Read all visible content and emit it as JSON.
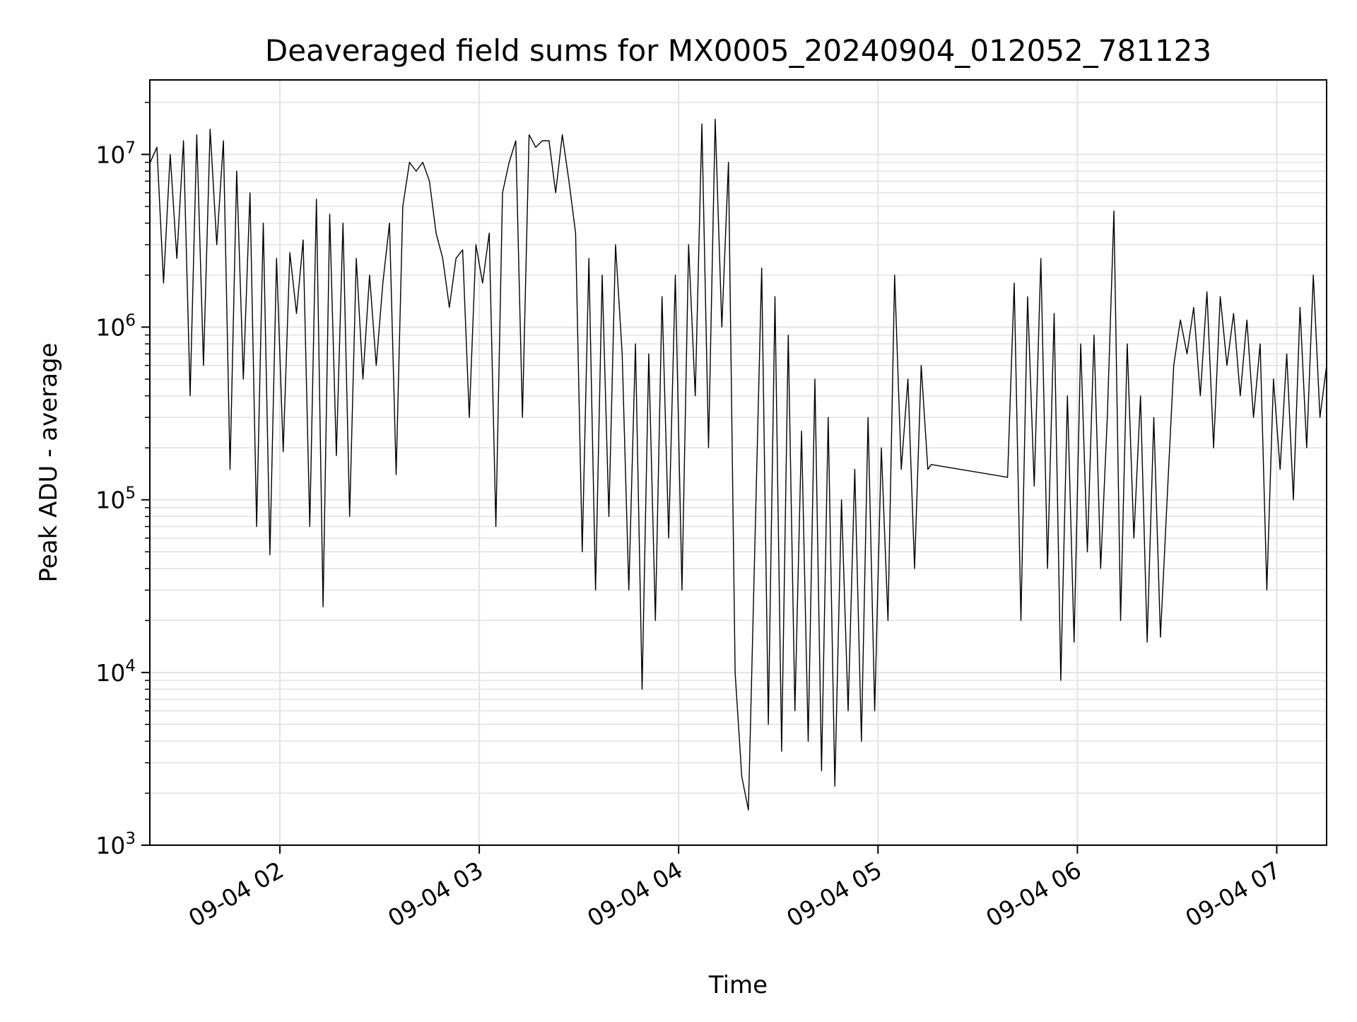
{
  "chart_data": {
    "type": "line",
    "title": "Deaveraged field sums for MX0005_20240904_012052_781123",
    "xlabel": "Time",
    "ylabel": "Peak ADU - average",
    "y_scale": "log",
    "ylim": [
      1000,
      27000000
    ],
    "xlim": [
      "2024-09-04 01:20:52",
      "2024-09-04 07:15:00"
    ],
    "grid": true,
    "line_color": "#000000",
    "grid_color": "#e3e3e3",
    "x_ticks": [
      {
        "value": "2024-09-04 02:00",
        "label": "09-04 02"
      },
      {
        "value": "2024-09-04 03:00",
        "label": "09-04 03"
      },
      {
        "value": "2024-09-04 04:00",
        "label": "09-04 04"
      },
      {
        "value": "2024-09-04 05:00",
        "label": "09-04 05"
      },
      {
        "value": "2024-09-04 06:00",
        "label": "09-04 06"
      },
      {
        "value": "2024-09-04 07:00",
        "label": "09-04 07"
      }
    ],
    "y_ticks": [
      {
        "value": 1000,
        "base": "10",
        "exp": "3"
      },
      {
        "value": 10000,
        "base": "10",
        "exp": "4"
      },
      {
        "value": 100000,
        "base": "10",
        "exp": "5"
      },
      {
        "value": 1000000,
        "base": "10",
        "exp": "6"
      },
      {
        "value": 10000000,
        "base": "10",
        "exp": "7"
      }
    ],
    "series": [
      {
        "points": [
          [
            "2024-09-04 01:21",
            9000000
          ],
          [
            "2024-09-04 01:23",
            11000000
          ],
          [
            "2024-09-04 01:25",
            1800000
          ],
          [
            "2024-09-04 01:27",
            10000000
          ],
          [
            "2024-09-04 01:29",
            2500000
          ],
          [
            "2024-09-04 01:31",
            12000000
          ],
          [
            "2024-09-04 01:33",
            400000
          ],
          [
            "2024-09-04 01:35",
            13000000
          ],
          [
            "2024-09-04 01:37",
            600000
          ],
          [
            "2024-09-04 01:39",
            14000000
          ],
          [
            "2024-09-04 01:41",
            3000000
          ],
          [
            "2024-09-04 01:43",
            12000000
          ],
          [
            "2024-09-04 01:45",
            150000
          ],
          [
            "2024-09-04 01:47",
            8000000
          ],
          [
            "2024-09-04 01:49",
            500000
          ],
          [
            "2024-09-04 01:51",
            6000000
          ],
          [
            "2024-09-04 01:53",
            70000
          ],
          [
            "2024-09-04 01:55",
            4000000
          ],
          [
            "2024-09-04 01:57",
            48000
          ],
          [
            "2024-09-04 01:59",
            2500000
          ],
          [
            "2024-09-04 02:01",
            190000
          ],
          [
            "2024-09-04 02:03",
            2700000
          ],
          [
            "2024-09-04 02:05",
            1200000
          ],
          [
            "2024-09-04 02:07",
            3200000
          ],
          [
            "2024-09-04 02:09",
            70000
          ],
          [
            "2024-09-04 02:11",
            5500000
          ],
          [
            "2024-09-04 02:13",
            24000
          ],
          [
            "2024-09-04 02:15",
            4500000
          ],
          [
            "2024-09-04 02:17",
            180000
          ],
          [
            "2024-09-04 02:19",
            4000000
          ],
          [
            "2024-09-04 02:21",
            80000
          ],
          [
            "2024-09-04 02:23",
            2500000
          ],
          [
            "2024-09-04 02:25",
            500000
          ],
          [
            "2024-09-04 02:27",
            2000000
          ],
          [
            "2024-09-04 02:29",
            600000
          ],
          [
            "2024-09-04 02:31",
            1800000
          ],
          [
            "2024-09-04 02:33",
            4000000
          ],
          [
            "2024-09-04 02:35",
            140000
          ],
          [
            "2024-09-04 02:37",
            5000000
          ],
          [
            "2024-09-04 02:39",
            9000000
          ],
          [
            "2024-09-04 02:41",
            8000000
          ],
          [
            "2024-09-04 02:43",
            9000000
          ],
          [
            "2024-09-04 02:45",
            7000000
          ],
          [
            "2024-09-04 02:47",
            3500000
          ],
          [
            "2024-09-04 02:49",
            2500000
          ],
          [
            "2024-09-04 02:51",
            1300000
          ],
          [
            "2024-09-04 02:53",
            2500000
          ],
          [
            "2024-09-04 02:55",
            2800000
          ],
          [
            "2024-09-04 02:57",
            300000
          ],
          [
            "2024-09-04 02:59",
            3000000
          ],
          [
            "2024-09-04 03:01",
            1800000
          ],
          [
            "2024-09-04 03:03",
            3500000
          ],
          [
            "2024-09-04 03:05",
            70000
          ],
          [
            "2024-09-04 03:07",
            6000000
          ],
          [
            "2024-09-04 03:09",
            9000000
          ],
          [
            "2024-09-04 03:11",
            12000000
          ],
          [
            "2024-09-04 03:13",
            300000
          ],
          [
            "2024-09-04 03:15",
            13000000
          ],
          [
            "2024-09-04 03:17",
            11000000
          ],
          [
            "2024-09-04 03:19",
            12000000
          ],
          [
            "2024-09-04 03:21",
            12000000
          ],
          [
            "2024-09-04 03:23",
            6000000
          ],
          [
            "2024-09-04 03:25",
            13000000
          ],
          [
            "2024-09-04 03:27",
            7000000
          ],
          [
            "2024-09-04 03:29",
            3500000
          ],
          [
            "2024-09-04 03:31",
            50000
          ],
          [
            "2024-09-04 03:33",
            2500000
          ],
          [
            "2024-09-04 03:35",
            30000
          ],
          [
            "2024-09-04 03:37",
            2000000
          ],
          [
            "2024-09-04 03:39",
            80000
          ],
          [
            "2024-09-04 03:41",
            3000000
          ],
          [
            "2024-09-04 03:43",
            700000
          ],
          [
            "2024-09-04 03:45",
            30000
          ],
          [
            "2024-09-04 03:47",
            800000
          ],
          [
            "2024-09-04 03:49",
            8000
          ],
          [
            "2024-09-04 03:51",
            700000
          ],
          [
            "2024-09-04 03:53",
            20000
          ],
          [
            "2024-09-04 03:55",
            1500000
          ],
          [
            "2024-09-04 03:57",
            60000
          ],
          [
            "2024-09-04 03:59",
            2000000
          ],
          [
            "2024-09-04 04:01",
            30000
          ],
          [
            "2024-09-04 04:03",
            3000000
          ],
          [
            "2024-09-04 04:05",
            400000
          ],
          [
            "2024-09-04 04:07",
            15000000
          ],
          [
            "2024-09-04 04:09",
            200000
          ],
          [
            "2024-09-04 04:11",
            16000000
          ],
          [
            "2024-09-04 04:13",
            1000000
          ],
          [
            "2024-09-04 04:15",
            9000000
          ],
          [
            "2024-09-04 04:17",
            10000
          ],
          [
            "2024-09-04 04:19",
            2500
          ],
          [
            "2024-09-04 04:21",
            1600
          ],
          [
            "2024-09-04 04:23",
            60000
          ],
          [
            "2024-09-04 04:25",
            2200000
          ],
          [
            "2024-09-04 04:27",
            5000
          ],
          [
            "2024-09-04 04:29",
            1500000
          ],
          [
            "2024-09-04 04:31",
            3500
          ],
          [
            "2024-09-04 04:33",
            900000
          ],
          [
            "2024-09-04 04:35",
            6000
          ],
          [
            "2024-09-04 04:37",
            250000
          ],
          [
            "2024-09-04 04:39",
            4000
          ],
          [
            "2024-09-04 04:41",
            500000
          ],
          [
            "2024-09-04 04:43",
            2700
          ],
          [
            "2024-09-04 04:45",
            300000
          ],
          [
            "2024-09-04 04:47",
            2200
          ],
          [
            "2024-09-04 04:49",
            100000
          ],
          [
            "2024-09-04 04:51",
            6000
          ],
          [
            "2024-09-04 04:53",
            150000
          ],
          [
            "2024-09-04 04:55",
            4000
          ],
          [
            "2024-09-04 04:57",
            300000
          ],
          [
            "2024-09-04 04:59",
            6000
          ],
          [
            "2024-09-04 05:01",
            200000
          ],
          [
            "2024-09-04 05:03",
            20000
          ],
          [
            "2024-09-04 05:05",
            2000000
          ],
          [
            "2024-09-04 05:07",
            150000
          ],
          [
            "2024-09-04 05:09",
            500000
          ],
          [
            "2024-09-04 05:11",
            40000
          ],
          [
            "2024-09-04 05:13",
            600000
          ],
          [
            "2024-09-04 05:15",
            150000
          ],
          [
            "2024-09-04 05:16",
            160000
          ],
          [
            "2024-09-04 05:39",
            135000
          ],
          [
            "2024-09-04 05:41",
            1800000
          ],
          [
            "2024-09-04 05:43",
            20000
          ],
          [
            "2024-09-04 05:45",
            1500000
          ],
          [
            "2024-09-04 05:47",
            120000
          ],
          [
            "2024-09-04 05:49",
            2500000
          ],
          [
            "2024-09-04 05:51",
            40000
          ],
          [
            "2024-09-04 05:53",
            1200000
          ],
          [
            "2024-09-04 05:55",
            9000
          ],
          [
            "2024-09-04 05:57",
            400000
          ],
          [
            "2024-09-04 05:59",
            15000
          ],
          [
            "2024-09-04 06:01",
            800000
          ],
          [
            "2024-09-04 06:03",
            50000
          ],
          [
            "2024-09-04 06:05",
            900000
          ],
          [
            "2024-09-04 06:07",
            40000
          ],
          [
            "2024-09-04 06:09",
            300000
          ],
          [
            "2024-09-04 06:11",
            4700000
          ],
          [
            "2024-09-04 06:13",
            20000
          ],
          [
            "2024-09-04 06:15",
            800000
          ],
          [
            "2024-09-04 06:17",
            60000
          ],
          [
            "2024-09-04 06:19",
            400000
          ],
          [
            "2024-09-04 06:21",
            15000
          ],
          [
            "2024-09-04 06:23",
            300000
          ],
          [
            "2024-09-04 06:25",
            16000
          ],
          [
            "2024-09-04 06:27",
            100000
          ],
          [
            "2024-09-04 06:29",
            600000
          ],
          [
            "2024-09-04 06:31",
            1100000
          ],
          [
            "2024-09-04 06:33",
            700000
          ],
          [
            "2024-09-04 06:35",
            1300000
          ],
          [
            "2024-09-04 06:37",
            400000
          ],
          [
            "2024-09-04 06:39",
            1600000
          ],
          [
            "2024-09-04 06:41",
            200000
          ],
          [
            "2024-09-04 06:43",
            1500000
          ],
          [
            "2024-09-04 06:45",
            600000
          ],
          [
            "2024-09-04 06:47",
            1200000
          ],
          [
            "2024-09-04 06:49",
            400000
          ],
          [
            "2024-09-04 06:51",
            1100000
          ],
          [
            "2024-09-04 06:53",
            300000
          ],
          [
            "2024-09-04 06:55",
            800000
          ],
          [
            "2024-09-04 06:57",
            30000
          ],
          [
            "2024-09-04 06:59",
            500000
          ],
          [
            "2024-09-04 07:01",
            150000
          ],
          [
            "2024-09-04 07:03",
            700000
          ],
          [
            "2024-09-04 07:05",
            100000
          ],
          [
            "2024-09-04 07:07",
            1300000
          ],
          [
            "2024-09-04 07:09",
            200000
          ],
          [
            "2024-09-04 07:11",
            2000000
          ],
          [
            "2024-09-04 07:13",
            300000
          ],
          [
            "2024-09-04 07:15",
            600000
          ]
        ]
      }
    ]
  }
}
